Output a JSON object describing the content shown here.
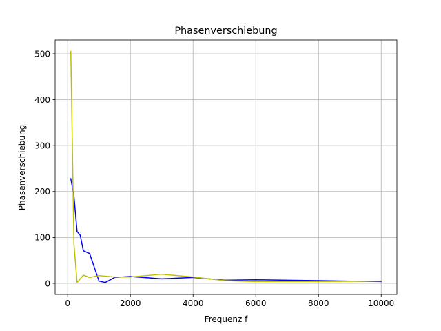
{
  "chart_data": {
    "type": "line",
    "title": "Phasenverschiebung",
    "xlabel": "Frequenz f",
    "ylabel": "Phasenverschiebung",
    "xlim": [
      -400,
      10500
    ],
    "ylim": [
      -24,
      530
    ],
    "x_ticks": [
      0,
      2000,
      4000,
      6000,
      8000,
      10000
    ],
    "y_ticks": [
      0,
      100,
      200,
      300,
      400,
      500
    ],
    "x_tick_labels": [
      "0",
      "2000",
      "4000",
      "6000",
      "8000",
      "10000"
    ],
    "y_tick_labels": [
      "0",
      "100",
      "200",
      "300",
      "400",
      "500"
    ],
    "grid": true,
    "legend": null,
    "series": [
      {
        "color": "#0000ff",
        "x": [
          100,
          200,
          300,
          400,
          500,
          700,
          1000,
          1200,
          1500,
          2000,
          3000,
          4000,
          5000,
          6000,
          8000,
          10000
        ],
        "y": [
          228,
          190,
          113,
          105,
          71,
          65,
          5,
          2,
          13,
          15,
          10,
          13,
          7,
          8,
          6,
          4
        ]
      },
      {
        "color": "#bfbf00",
        "x": [
          100,
          200,
          300,
          500,
          700,
          1000,
          1500,
          2000,
          3000,
          4000,
          5000,
          6000,
          8000,
          10000
        ],
        "y": [
          505,
          85,
          2,
          18,
          13,
          17,
          14,
          14,
          20,
          14,
          6,
          4,
          4,
          5
        ]
      }
    ]
  }
}
